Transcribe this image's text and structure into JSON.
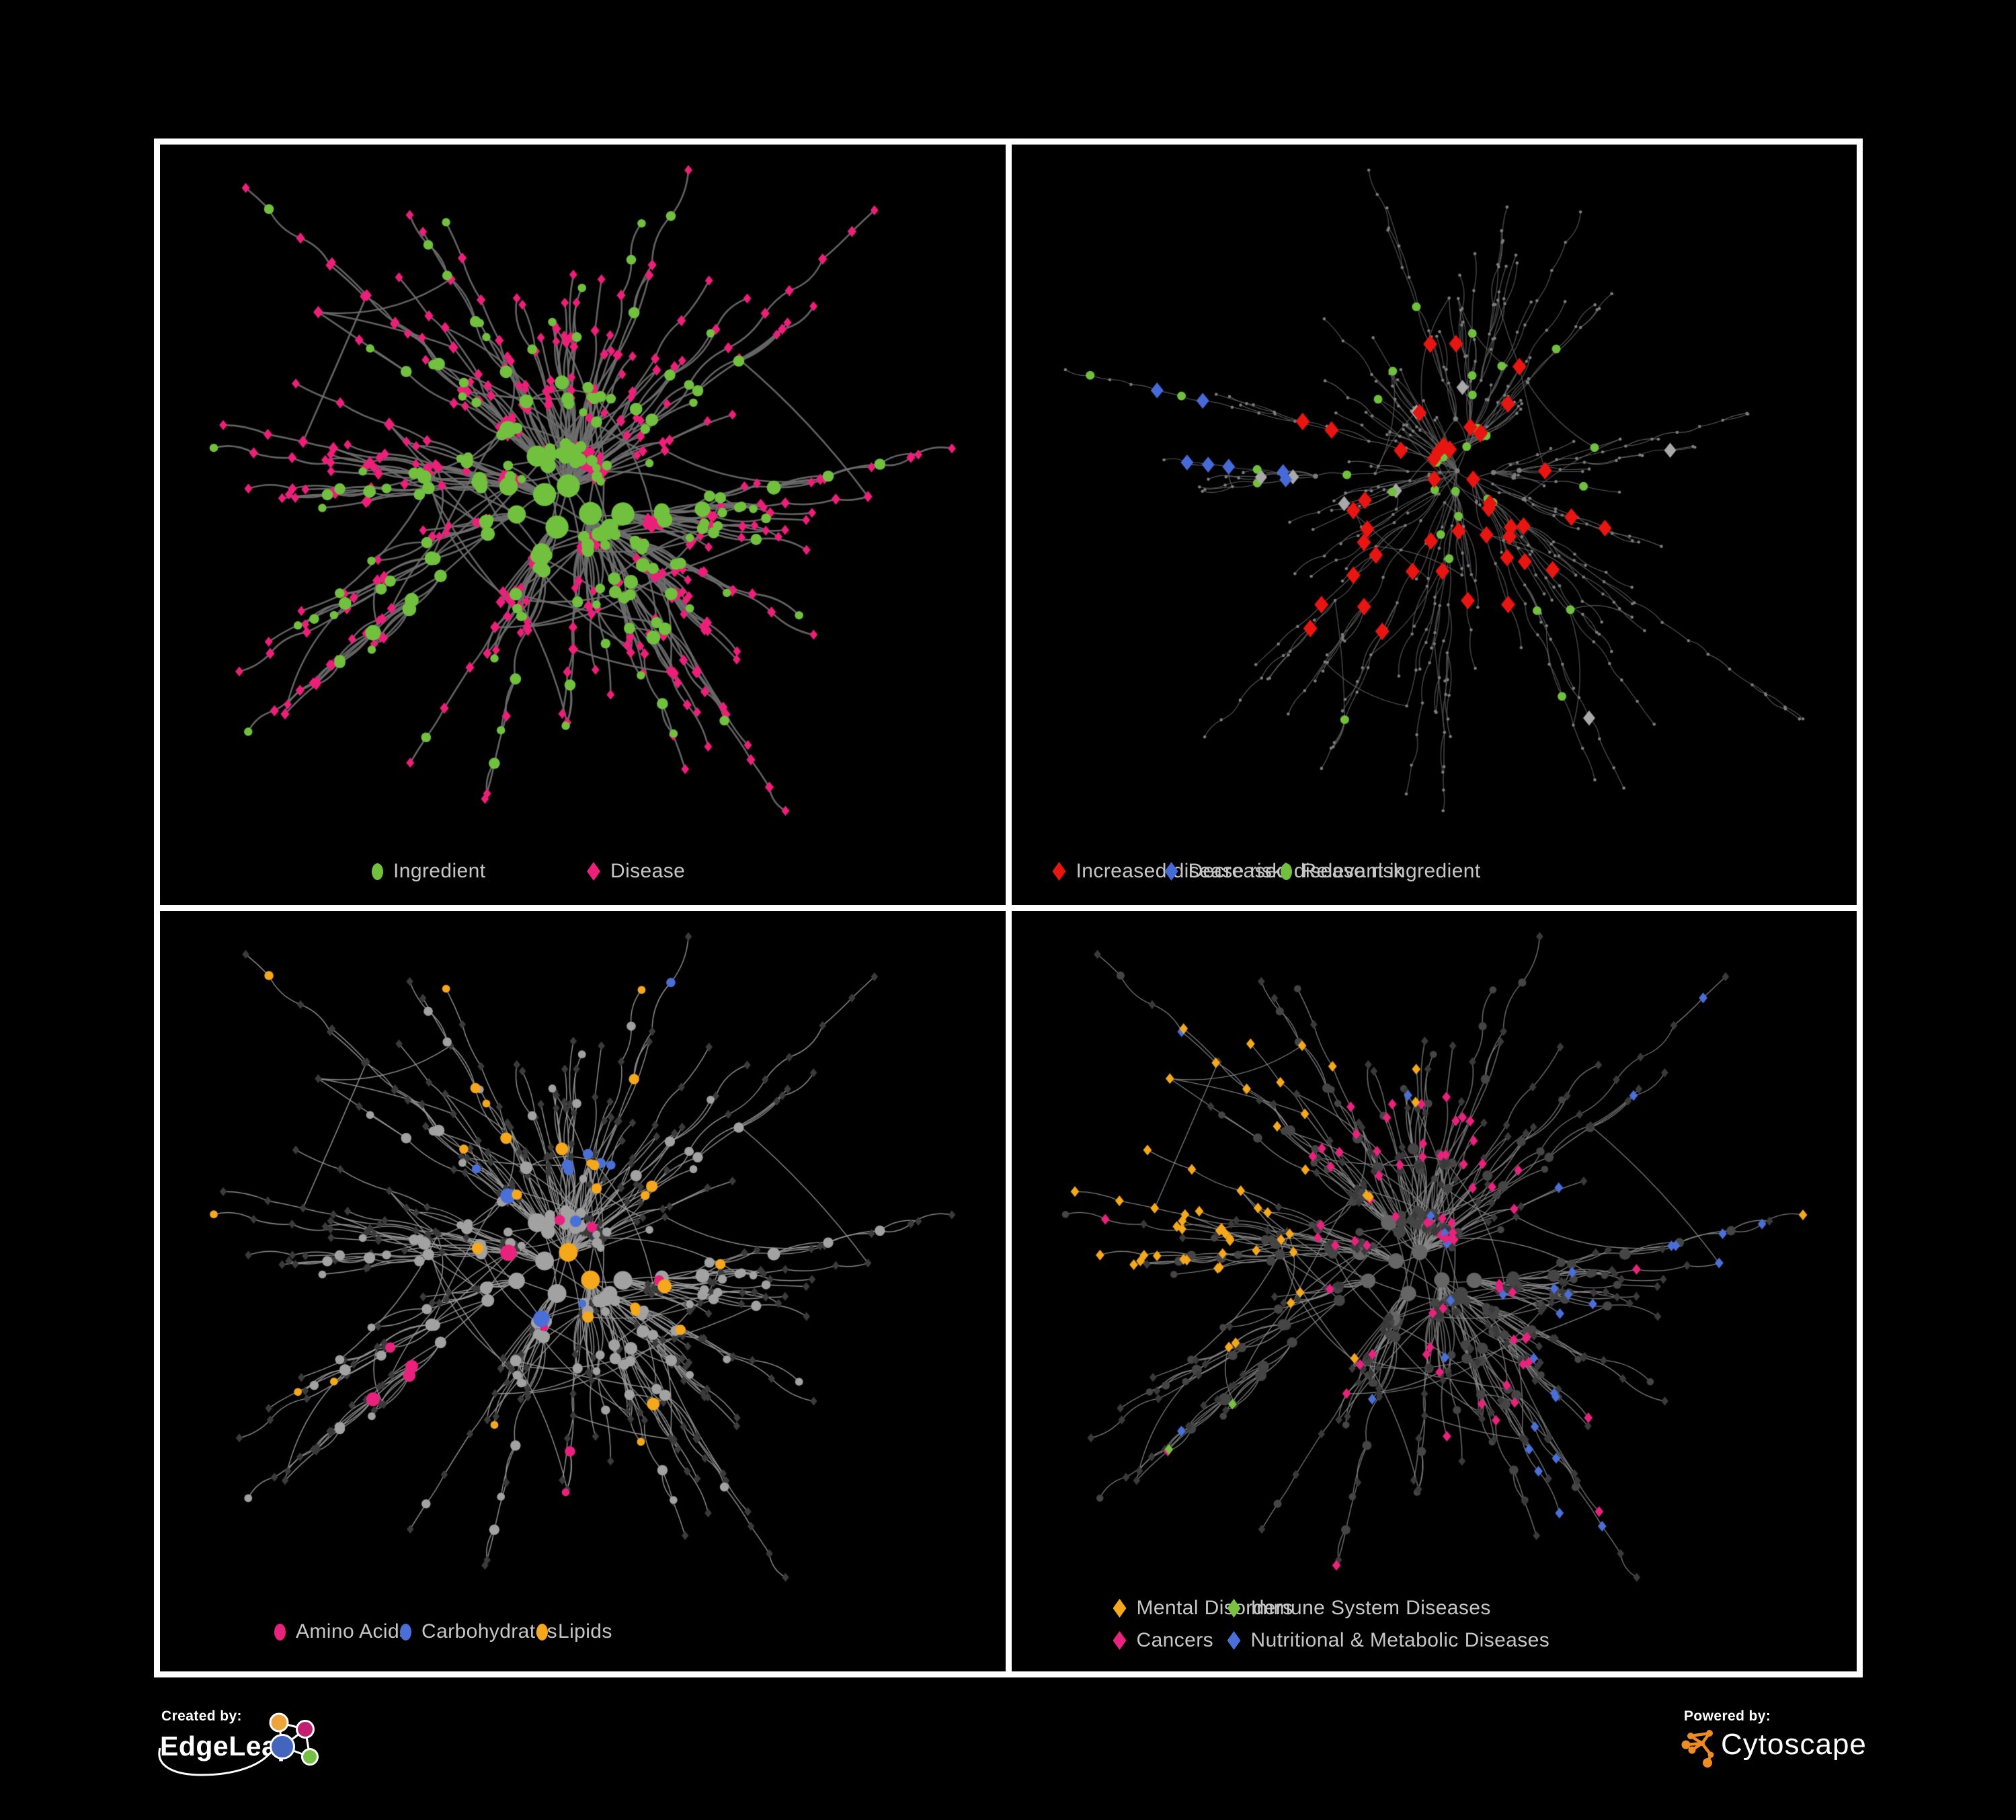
{
  "page": {
    "background": "#000000"
  },
  "panels": [
    {
      "name": "ingredient-disease-network",
      "legend": [
        {
          "shape": "circle",
          "color": "#72c13e",
          "label": "Ingredient"
        },
        {
          "shape": "diamond",
          "color": "#ec1f79",
          "label": "Disease"
        }
      ],
      "net": {
        "seed": 11,
        "nodes": 620,
        "chain": 0.3,
        "hubBias": 2.6,
        "step": 62,
        "extra": 80,
        "linkDist": 170,
        "mode": "two_tone",
        "edge": "#6f6f6f",
        "edgeW": 2.6,
        "circle": "#72c13e",
        "diamond": "#ec1f79"
      }
    },
    {
      "name": "disease-risk-network",
      "legend": [
        {
          "shape": "diamond",
          "color": "#e81511",
          "label": "Increased disease risk"
        },
        {
          "shape": "diamond",
          "color": "#466bd9",
          "label": "Decreased disease risk"
        },
        {
          "shape": "circle",
          "color": "#72c13e",
          "label": "Relevant ingredient"
        }
      ],
      "net": {
        "seed": 47,
        "nodes": 560,
        "chain": 0.48,
        "hubBias": 2.2,
        "step": 64,
        "extra": 30,
        "linkDist": 150,
        "mode": "highlight",
        "styleSeed": 5,
        "edge": "#616161",
        "edgeW": 1.15,
        "dot": "#7d7d7d",
        "red": "#e81511",
        "blue": "#466bd9",
        "silver": "#a9a9a9",
        "green": "#72c13e"
      }
    },
    {
      "name": "nutrient-class-network",
      "legend": [
        {
          "shape": "circle",
          "color": "#e8227d",
          "label": "Amino Acids"
        },
        {
          "shape": "circle",
          "color": "#4a6fd8",
          "label": "Carbohydrates"
        },
        {
          "shape": "circle",
          "color": "#f5a81c",
          "label": "Lipids"
        }
      ],
      "net": {
        "seed": 11,
        "nodes": 620,
        "chain": 0.3,
        "hubBias": 2.6,
        "step": 62,
        "extra": 80,
        "linkDist": 170,
        "mode": "class_circles",
        "styleSeed": 7,
        "edge": "#9a9a9a",
        "edgeW": 1.5,
        "gray": "#a2a2a2",
        "darkDiamond": "#3b3b3b",
        "amino": "#e8227d",
        "carbs": "#4a6fd8",
        "lipids": "#f5a81c"
      }
    },
    {
      "name": "disease-class-network",
      "legend": [
        {
          "shape": "diamond",
          "color": "#f5a81c",
          "label": "Mental Disorders"
        },
        {
          "shape": "diamond",
          "color": "#7ac142",
          "label": "Immune System Diseases"
        },
        {
          "shape": "diamond",
          "color": "#e8227d",
          "label": "Cancers"
        },
        {
          "shape": "diamond",
          "color": "#4a6fd8",
          "label": "Nutritional & Metabolic Diseases"
        }
      ],
      "net": {
        "seed": 11,
        "nodes": 620,
        "chain": 0.3,
        "hubBias": 2.6,
        "step": 62,
        "extra": 80,
        "linkDist": 170,
        "mode": "class_diamonds",
        "styleSeed": 9,
        "edge": "#8a8a8a",
        "edgeW": 1.3,
        "darkDiamond": "#3a3a3a",
        "darkCircle": "#454545",
        "hubCircle": "#666666",
        "mental": "#f5a81c",
        "immune": "#7ac142",
        "cancers": "#e8227d",
        "nutri": "#4a6fd8"
      }
    }
  ],
  "footer": {
    "created_by": {
      "label": "Created by:",
      "brand": "EdgeLeap",
      "logo_colors": {
        "orange": "#eda43b",
        "magenta": "#c2206f",
        "blue": "#4365bd",
        "green": "#74bf44",
        "link": "#ffffff"
      }
    },
    "powered_by": {
      "label": "Powered by:",
      "brand": "Cytoscape",
      "logo_color": "#ee8b21"
    }
  }
}
